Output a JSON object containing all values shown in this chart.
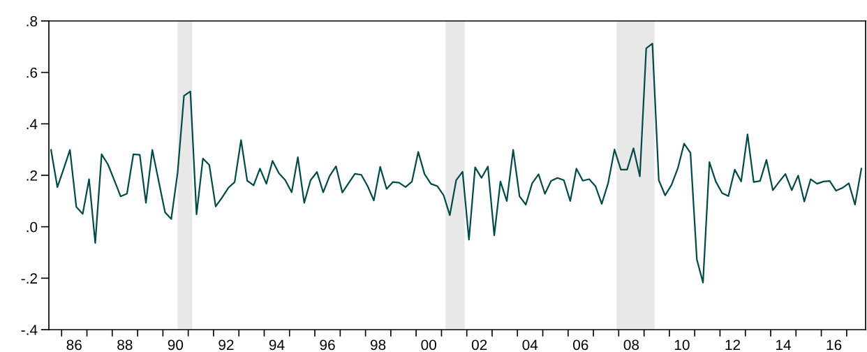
{
  "chart_data": {
    "type": "line",
    "x": [
      "1985-08",
      "1985-11",
      "1986-02",
      "1986-05",
      "1986-08",
      "1986-11",
      "1987-02",
      "1987-05",
      "1987-08",
      "1987-11",
      "1988-02",
      "1988-05",
      "1988-08",
      "1988-11",
      "1989-02",
      "1989-05",
      "1989-08",
      "1989-11",
      "1990-02",
      "1990-05",
      "1990-08",
      "1990-11",
      "1991-02",
      "1991-05",
      "1991-08",
      "1991-11",
      "1992-02",
      "1992-05",
      "1992-08",
      "1992-11",
      "1993-02",
      "1993-05",
      "1993-08",
      "1993-11",
      "1994-02",
      "1994-05",
      "1994-08",
      "1994-11",
      "1995-02",
      "1995-05",
      "1995-08",
      "1995-11",
      "1996-02",
      "1996-05",
      "1996-08",
      "1996-11",
      "1997-02",
      "1997-05",
      "1997-08",
      "1997-11",
      "1998-02",
      "1998-05",
      "1998-08",
      "1998-11",
      "1999-02",
      "1999-05",
      "1999-08",
      "1999-11",
      "2000-02",
      "2000-05",
      "2000-08",
      "2000-11",
      "2001-02",
      "2001-05",
      "2001-08",
      "2001-11",
      "2002-02",
      "2002-05",
      "2002-08",
      "2002-11",
      "2003-02",
      "2003-05",
      "2003-08",
      "2003-11",
      "2004-02",
      "2004-05",
      "2004-08",
      "2004-11",
      "2005-02",
      "2005-05",
      "2005-08",
      "2005-11",
      "2006-02",
      "2006-05",
      "2006-08",
      "2006-11",
      "2007-02",
      "2007-05",
      "2007-08",
      "2007-11",
      "2008-02",
      "2008-05",
      "2008-08",
      "2008-11",
      "2009-02",
      "2009-05",
      "2009-08",
      "2009-11",
      "2010-02",
      "2010-05",
      "2010-08",
      "2010-11",
      "2011-02",
      "2011-05",
      "2011-08",
      "2011-11",
      "2012-02",
      "2012-05",
      "2012-08",
      "2012-11",
      "2013-02",
      "2013-05",
      "2013-08",
      "2013-11",
      "2014-02",
      "2014-05",
      "2014-08",
      "2014-11",
      "2015-02",
      "2015-05",
      "2015-08",
      "2015-11",
      "2016-02",
      "2016-05",
      "2016-08",
      "2016-11",
      "2017-02",
      "2017-05",
      "2017-08"
    ],
    "series": [
      {
        "color": "#004a4a",
        "values": [
          0.299,
          0.154,
          0.226,
          0.299,
          0.077,
          0.05,
          0.185,
          -0.063,
          0.282,
          0.242,
          0.18,
          0.118,
          0.129,
          0.282,
          0.28,
          0.093,
          0.299,
          0.177,
          0.056,
          0.03,
          0.21,
          0.509,
          0.526,
          0.048,
          0.265,
          0.24,
          0.079,
          0.113,
          0.151,
          0.174,
          0.337,
          0.179,
          0.161,
          0.226,
          0.167,
          0.256,
          0.208,
          0.181,
          0.134,
          0.27,
          0.093,
          0.181,
          0.213,
          0.134,
          0.197,
          0.235,
          0.133,
          0.169,
          0.206,
          0.202,
          0.158,
          0.102,
          0.233,
          0.147,
          0.174,
          0.171,
          0.154,
          0.175,
          0.291,
          0.205,
          0.167,
          0.158,
          0.122,
          0.045,
          0.181,
          0.214,
          -0.05,
          0.231,
          0.19,
          0.234,
          -0.033,
          0.176,
          0.1,
          0.299,
          0.118,
          0.086,
          0.169,
          0.204,
          0.128,
          0.178,
          0.19,
          0.181,
          0.1,
          0.226,
          0.179,
          0.185,
          0.157,
          0.089,
          0.169,
          0.3,
          0.222,
          0.222,
          0.305,
          0.196,
          0.694,
          0.712,
          0.181,
          0.122,
          0.163,
          0.226,
          0.323,
          0.287,
          -0.127,
          -0.217,
          0.251,
          0.176,
          0.131,
          0.119,
          0.222,
          0.176,
          0.359,
          0.174,
          0.178,
          0.26,
          0.142,
          0.174,
          0.205,
          0.142,
          0.199,
          0.098,
          0.185,
          0.167,
          0.176,
          0.178,
          0.14,
          0.151,
          0.169,
          0.086,
          0.226
        ]
      }
    ],
    "xlim": [
      "1985-07",
      "2017-10"
    ],
    "xticks": [
      {
        "value": "1986-01",
        "label": null
      },
      {
        "value": "1986-07",
        "label": "86"
      },
      {
        "value": "1987-01",
        "label": null
      },
      {
        "value": "1988-01",
        "label": null
      },
      {
        "value": "1988-07",
        "label": "88"
      },
      {
        "value": "1989-01",
        "label": null
      },
      {
        "value": "1990-01",
        "label": null
      },
      {
        "value": "1990-07",
        "label": "90"
      },
      {
        "value": "1991-01",
        "label": null
      },
      {
        "value": "1992-01",
        "label": null
      },
      {
        "value": "1992-07",
        "label": "92"
      },
      {
        "value": "1993-01",
        "label": null
      },
      {
        "value": "1994-01",
        "label": null
      },
      {
        "value": "1994-07",
        "label": "94"
      },
      {
        "value": "1995-01",
        "label": null
      },
      {
        "value": "1996-01",
        "label": null
      },
      {
        "value": "1996-07",
        "label": "96"
      },
      {
        "value": "1997-01",
        "label": null
      },
      {
        "value": "1998-01",
        "label": null
      },
      {
        "value": "1998-07",
        "label": "98"
      },
      {
        "value": "1999-01",
        "label": null
      },
      {
        "value": "2000-01",
        "label": null
      },
      {
        "value": "2000-07",
        "label": "00"
      },
      {
        "value": "2001-01",
        "label": null
      },
      {
        "value": "2002-01",
        "label": null
      },
      {
        "value": "2002-07",
        "label": "02"
      },
      {
        "value": "2003-01",
        "label": null
      },
      {
        "value": "2004-01",
        "label": null
      },
      {
        "value": "2004-07",
        "label": "04"
      },
      {
        "value": "2005-01",
        "label": null
      },
      {
        "value": "2006-01",
        "label": null
      },
      {
        "value": "2006-07",
        "label": "06"
      },
      {
        "value": "2007-01",
        "label": null
      },
      {
        "value": "2008-01",
        "label": null
      },
      {
        "value": "2008-07",
        "label": "08"
      },
      {
        "value": "2009-01",
        "label": null
      },
      {
        "value": "2010-01",
        "label": null
      },
      {
        "value": "2010-07",
        "label": "10"
      },
      {
        "value": "2011-01",
        "label": null
      },
      {
        "value": "2012-01",
        "label": null
      },
      {
        "value": "2012-07",
        "label": "12"
      },
      {
        "value": "2013-01",
        "label": null
      },
      {
        "value": "2014-01",
        "label": null
      },
      {
        "value": "2014-07",
        "label": "14"
      },
      {
        "value": "2015-01",
        "label": null
      },
      {
        "value": "2016-01",
        "label": null
      },
      {
        "value": "2016-07",
        "label": "16"
      },
      {
        "value": "2017-01",
        "label": null
      }
    ],
    "ylim": [
      -0.4,
      0.8
    ],
    "yticks": [
      {
        "value": -0.4,
        "label": "-.4"
      },
      {
        "value": -0.2,
        "label": "-.2"
      },
      {
        "value": 0.0,
        "label": ".0"
      },
      {
        "value": 0.2,
        "label": ".2"
      },
      {
        "value": 0.4,
        "label": ".4"
      },
      {
        "value": 0.6,
        "label": ".6"
      },
      {
        "value": 0.8,
        "label": ".8"
      }
    ],
    "bands": [
      {
        "axis": "x",
        "from": "1990-08",
        "to": "1991-03",
        "color": "#e8e8e8"
      },
      {
        "axis": "x",
        "from": "2001-03",
        "to": "2001-12",
        "color": "#e8e8e8"
      },
      {
        "axis": "x",
        "from": "2007-12",
        "to": "2009-06",
        "color": "#e8e8e8"
      }
    ],
    "grid": false,
    "legend": false
  }
}
